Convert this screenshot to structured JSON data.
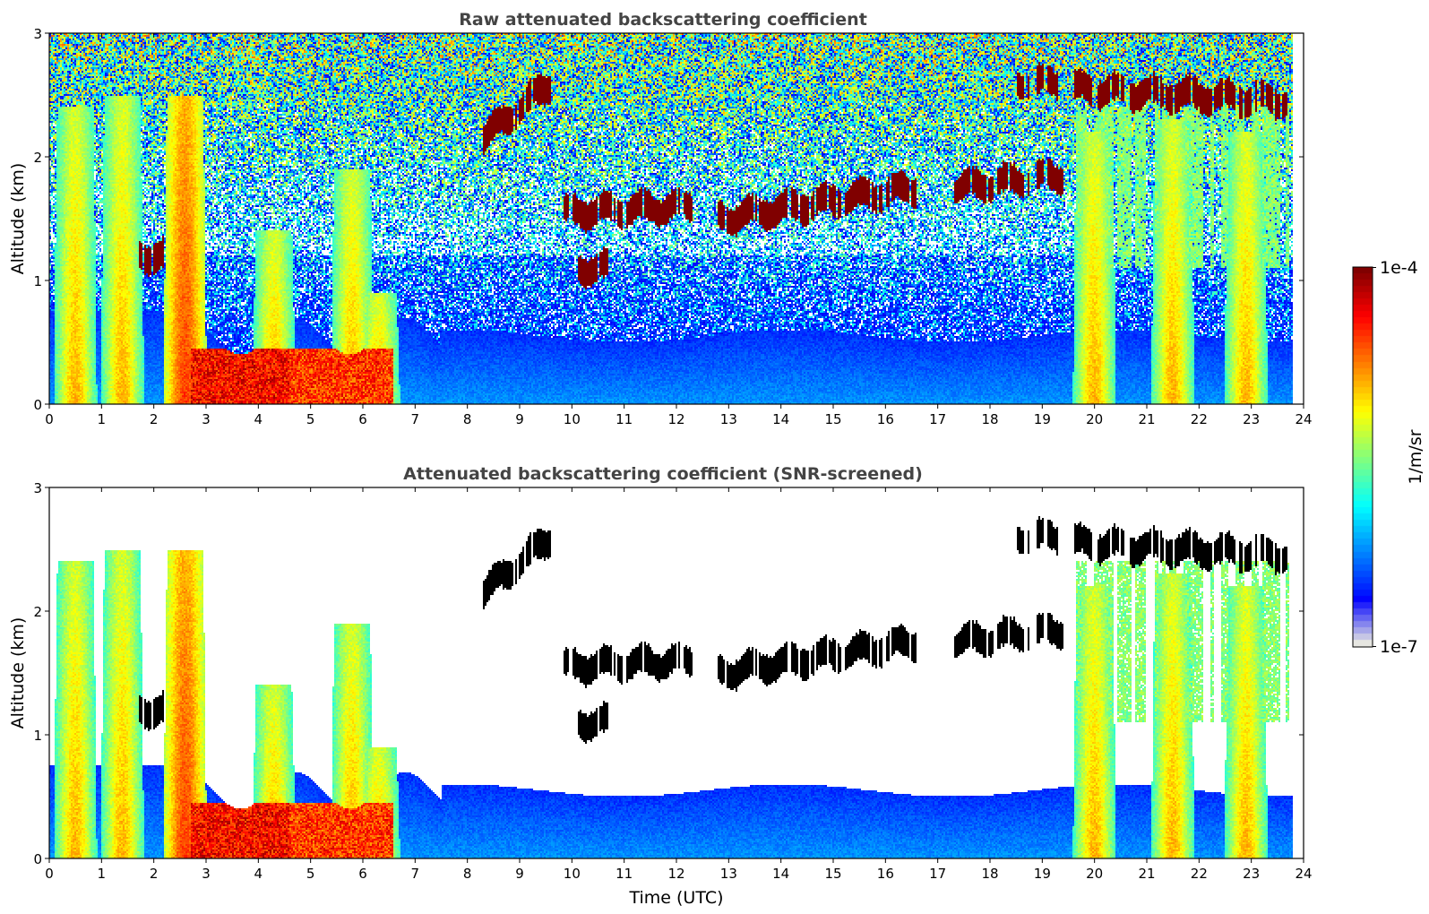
{
  "chart_data": [
    {
      "type": "heatmap",
      "title": "Raw attenuated backscattering coefficient",
      "ylabel": "Altitude (km)",
      "xlabel": "",
      "xlim": [
        0,
        24
      ],
      "ylim": [
        0,
        3
      ],
      "xticks": [
        0,
        1,
        2,
        3,
        4,
        5,
        6,
        7,
        8,
        9,
        10,
        11,
        12,
        13,
        14,
        15,
        16,
        17,
        18,
        19,
        20,
        21,
        22,
        23,
        24
      ],
      "yticks": [
        0,
        1,
        2,
        3
      ],
      "screened": false
    },
    {
      "type": "heatmap",
      "title": "Attenuated backscattering coefficient (SNR-screened)",
      "ylabel": "Altitude (km)",
      "xlabel": "Time (UTC)",
      "xlim": [
        0,
        24
      ],
      "ylim": [
        0,
        3
      ],
      "xticks": [
        0,
        1,
        2,
        3,
        4,
        5,
        6,
        7,
        8,
        9,
        10,
        11,
        12,
        13,
        14,
        15,
        16,
        17,
        18,
        19,
        20,
        21,
        22,
        23,
        24
      ],
      "yticks": [
        0,
        1,
        2,
        3
      ],
      "screened": true
    }
  ],
  "features": {
    "cloud_layers": [
      {
        "t0": 8.3,
        "t1": 9.6,
        "a0": 2.15,
        "a1": 2.6
      },
      {
        "t0": 9.8,
        "t1": 12.3,
        "a0": 1.55,
        "a1": 1.6
      },
      {
        "t0": 12.8,
        "t1": 16.6,
        "a0": 1.5,
        "a1": 1.75
      },
      {
        "t0": 17.3,
        "t1": 19.4,
        "a0": 1.75,
        "a1": 1.85
      },
      {
        "t0": 18.5,
        "t1": 19.3,
        "a0": 2.6,
        "a1": 2.6
      },
      {
        "t0": 19.6,
        "t1": 23.8,
        "a0": 2.55,
        "a1": 2.45
      },
      {
        "t0": 10.1,
        "t1": 10.7,
        "a0": 1.1,
        "a1": 1.1
      },
      {
        "t0": 1.7,
        "t1": 2.2,
        "a0": 1.2,
        "a1": 1.2
      }
    ],
    "aerosol_plumes": [
      {
        "t": 0.5,
        "top": 2.4
      },
      {
        "t": 1.4,
        "top": 2.5
      },
      {
        "t": 2.6,
        "top": 2.5
      },
      {
        "t": 4.3,
        "top": 1.4
      },
      {
        "t": 5.8,
        "top": 1.9
      },
      {
        "t": 6.3,
        "top": 0.9
      },
      {
        "t": 20.0,
        "top": 2.2
      },
      {
        "t": 21.5,
        "top": 2.3
      },
      {
        "t": 22.9,
        "top": 2.2
      }
    ],
    "data_end_utc": 23.8
  },
  "colorbar": {
    "label": "1/m/sr",
    "max_label": "1e-4",
    "min_label": "1e-7",
    "colormap": "jet",
    "scale": "log"
  },
  "colors": {
    "background": "#ffffff",
    "title_color": "#444444",
    "saturated_screened": "#000000",
    "saturated_raw": "#800000"
  }
}
